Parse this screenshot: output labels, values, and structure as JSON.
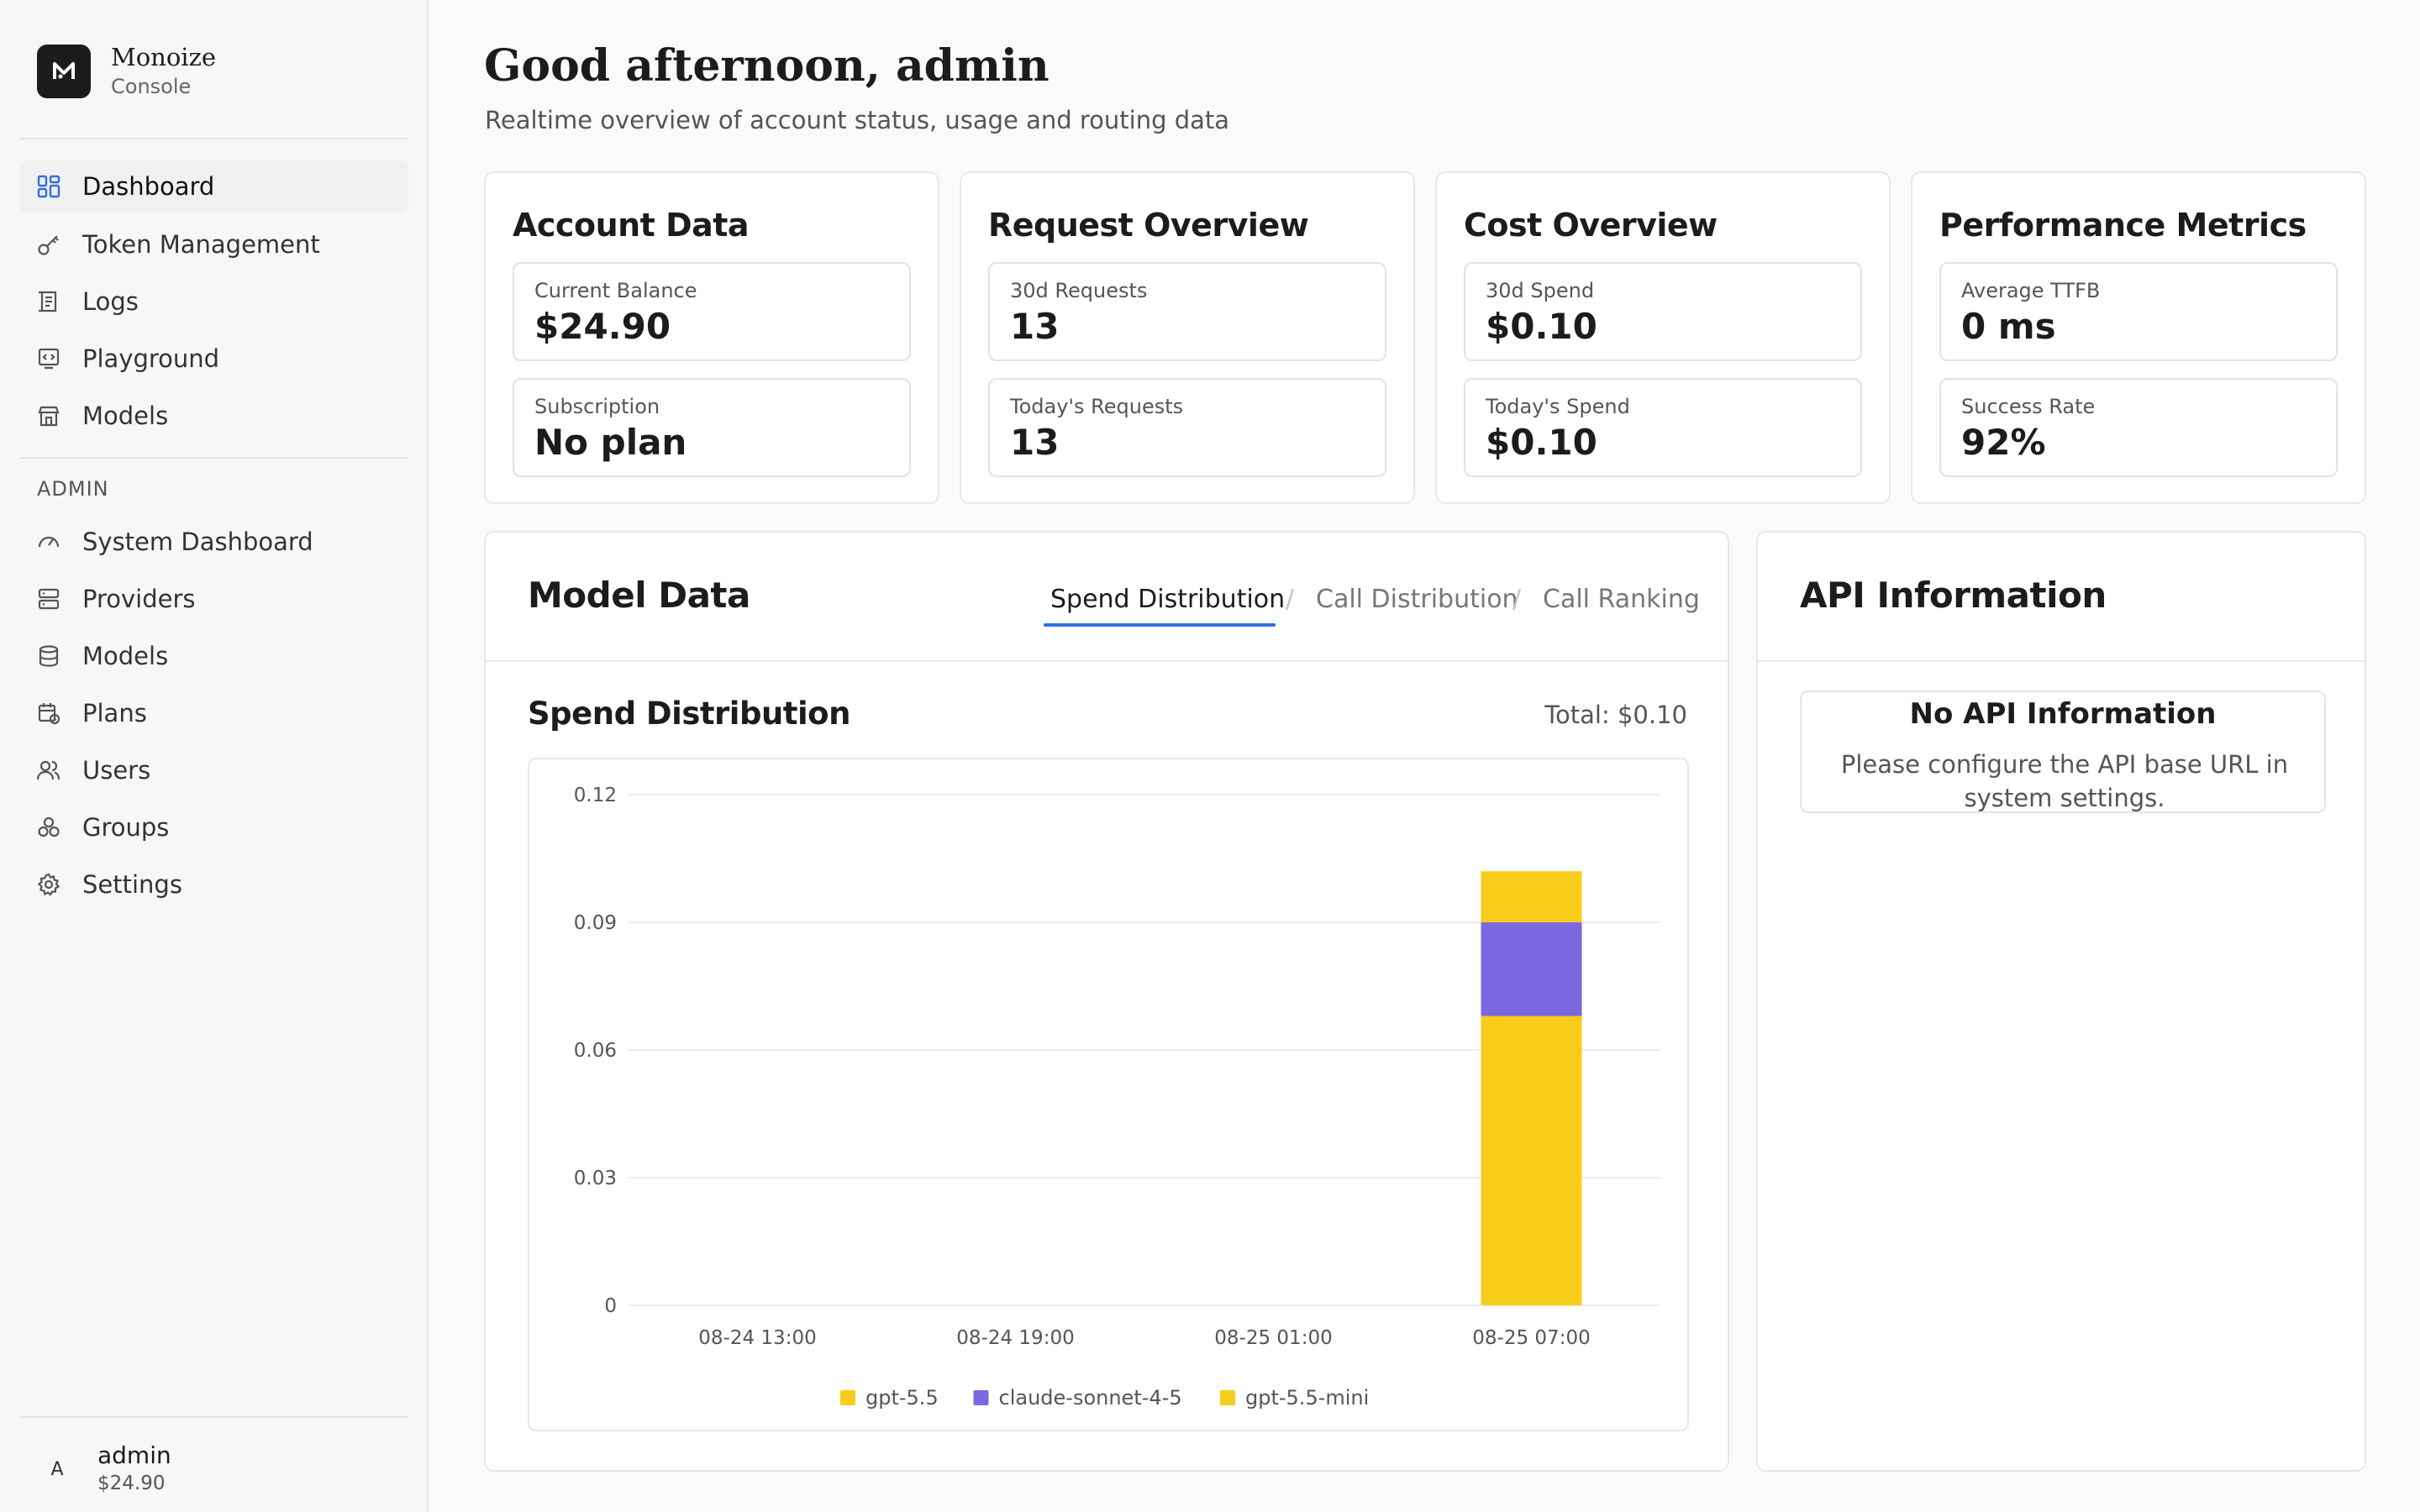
{
  "brand": {
    "name": "Monoize",
    "subtitle": "Console",
    "logo_letter": "M"
  },
  "sidebar": {
    "items": [
      {
        "label": "Dashboard",
        "icon": "dashboard-icon",
        "active": true
      },
      {
        "label": "Token Management",
        "icon": "key-icon"
      },
      {
        "label": "Logs",
        "icon": "logs-icon"
      },
      {
        "label": "Playground",
        "icon": "playground-icon"
      },
      {
        "label": "Models",
        "icon": "store-icon"
      }
    ],
    "admin_label": "ADMIN",
    "admin_items": [
      {
        "label": "System Dashboard",
        "icon": "gauge-icon"
      },
      {
        "label": "Providers",
        "icon": "server-icon"
      },
      {
        "label": "Models",
        "icon": "database-icon"
      },
      {
        "label": "Plans",
        "icon": "calendar-icon"
      },
      {
        "label": "Users",
        "icon": "users-icon"
      },
      {
        "label": "Groups",
        "icon": "groups-icon"
      },
      {
        "label": "Settings",
        "icon": "gear-icon"
      }
    ],
    "user": {
      "avatar_letter": "A",
      "name": "admin",
      "balance": "$24.90"
    }
  },
  "header": {
    "greeting": "Good afternoon, admin",
    "subtitle": "Realtime overview of account status, usage and routing data"
  },
  "cards": [
    {
      "title": "Account Data",
      "stats": [
        {
          "label": "Current Balance",
          "value": "$24.90"
        },
        {
          "label": "Subscription",
          "value": "No plan"
        }
      ]
    },
    {
      "title": "Request Overview",
      "stats": [
        {
          "label": "30d Requests",
          "value": "13"
        },
        {
          "label": "Today's Requests",
          "value": "13"
        }
      ]
    },
    {
      "title": "Cost Overview",
      "stats": [
        {
          "label": "30d Spend",
          "value": "$0.10"
        },
        {
          "label": "Today's Spend",
          "value": "$0.10"
        }
      ]
    },
    {
      "title": "Performance Metrics",
      "stats": [
        {
          "label": "Average TTFB",
          "value": "0 ms"
        },
        {
          "label": "Success Rate",
          "value": "92%"
        }
      ]
    }
  ],
  "model_data": {
    "title": "Model Data",
    "tabs": [
      "Spend Distribution",
      "Call Distribution",
      "Call Ranking"
    ],
    "active_tab": "Spend Distribution",
    "section_title": "Spend Distribution",
    "total": "Total: $0.10"
  },
  "api_info": {
    "title": "API Information",
    "empty_title": "No API Information",
    "empty_text": "Please configure the API base URL in system settings."
  },
  "chart_data": {
    "type": "bar",
    "stacked": true,
    "categories": [
      "08-24 13:00",
      "08-24 19:00",
      "08-25 01:00",
      "08-25 07:00"
    ],
    "series": [
      {
        "name": "gpt-5.5",
        "color": "#f8cc1b",
        "values": [
          0,
          0,
          0,
          0.068
        ]
      },
      {
        "name": "claude-sonnet-4-5",
        "color": "#7b68e0",
        "values": [
          0,
          0,
          0,
          0.022
        ]
      },
      {
        "name": "gpt-5.5-mini",
        "color": "#f8cc1b",
        "values": [
          0,
          0,
          0,
          0.012
        ]
      }
    ],
    "yticks": [
      "0",
      "0.03",
      "0.06",
      "0.09",
      "0.12"
    ],
    "ylim": [
      0,
      0.12
    ],
    "grid": true,
    "legend": "bottom"
  }
}
